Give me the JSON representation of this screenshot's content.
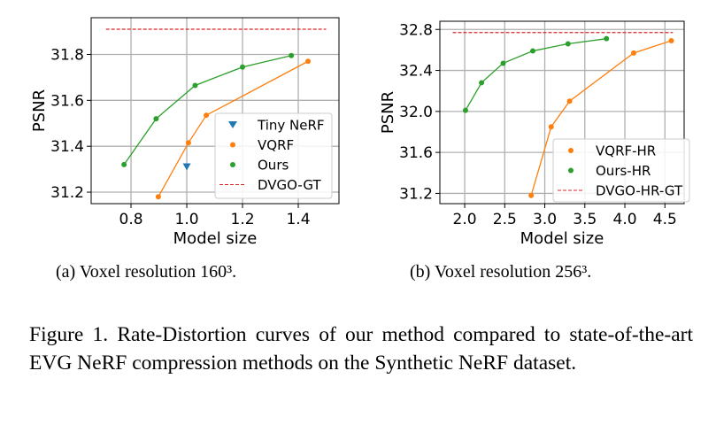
{
  "chart_data": [
    {
      "type": "line",
      "xlabel": "Model size",
      "ylabel": "PSNR",
      "xlim": [
        0.657,
        1.546
      ],
      "ylim": [
        31.15,
        31.96
      ],
      "xticks": [
        0.8,
        1.0,
        1.2,
        1.4
      ],
      "yticks": [
        31.2,
        31.4,
        31.6,
        31.8
      ],
      "grid": true,
      "legend": "bottom-right",
      "series": [
        {
          "name": "Tiny NeRF",
          "color": "#1f77b4",
          "marker": "triangle-down",
          "line": false,
          "x": [
            1.0
          ],
          "y": [
            31.31
          ]
        },
        {
          "name": "VQRF",
          "color": "#ff7f0e",
          "marker": "circle",
          "x": [
            0.898,
            1.006,
            1.07,
            1.435
          ],
          "y": [
            31.18,
            31.415,
            31.535,
            31.77
          ]
        },
        {
          "name": "Ours",
          "color": "#2ca02c",
          "marker": "circle",
          "x": [
            0.775,
            0.89,
            1.03,
            1.2,
            1.375
          ],
          "y": [
            31.32,
            31.52,
            31.665,
            31.745,
            31.795
          ]
        },
        {
          "name": "DVGO-GT",
          "color": "#d62728",
          "dashed": true,
          "x": [
            0.71,
            1.5
          ],
          "y": [
            31.91,
            31.91
          ]
        }
      ]
    },
    {
      "type": "line",
      "xlabel": "Model size",
      "ylabel": "PSNR",
      "xlim": [
        1.69,
        4.74
      ],
      "ylim": [
        31.1,
        32.88
      ],
      "xticks": [
        2.0,
        2.5,
        3.0,
        3.5,
        4.0,
        4.5
      ],
      "yticks": [
        31.2,
        31.6,
        32.0,
        32.4,
        32.8
      ],
      "grid": true,
      "legend": "bottom-right",
      "series": [
        {
          "name": "VQRF-HR",
          "color": "#ff7f0e",
          "marker": "circle",
          "x": [
            2.83,
            3.08,
            3.31,
            4.11,
            4.58
          ],
          "y": [
            31.18,
            31.85,
            32.1,
            32.57,
            32.69
          ]
        },
        {
          "name": "Ours-HR",
          "color": "#2ca02c",
          "marker": "circle",
          "x": [
            2.01,
            2.21,
            2.48,
            2.85,
            3.29,
            3.77
          ],
          "y": [
            32.01,
            32.28,
            32.47,
            32.59,
            32.66,
            32.71
          ]
        },
        {
          "name": "DVGO-HR-GT",
          "color": "#d62728",
          "dashed": true,
          "x": [
            1.85,
            4.6
          ],
          "y": [
            32.77,
            32.77
          ]
        }
      ]
    }
  ],
  "captions": {
    "a": "(a) Voxel resolution 160³.",
    "b": "(b) Voxel resolution 256³.",
    "figure": "Figure 1.  Rate-Distortion curves of our method compared to state-of-the-art EVG NeRF compression methods on the Synthetic NeRF dataset."
  }
}
